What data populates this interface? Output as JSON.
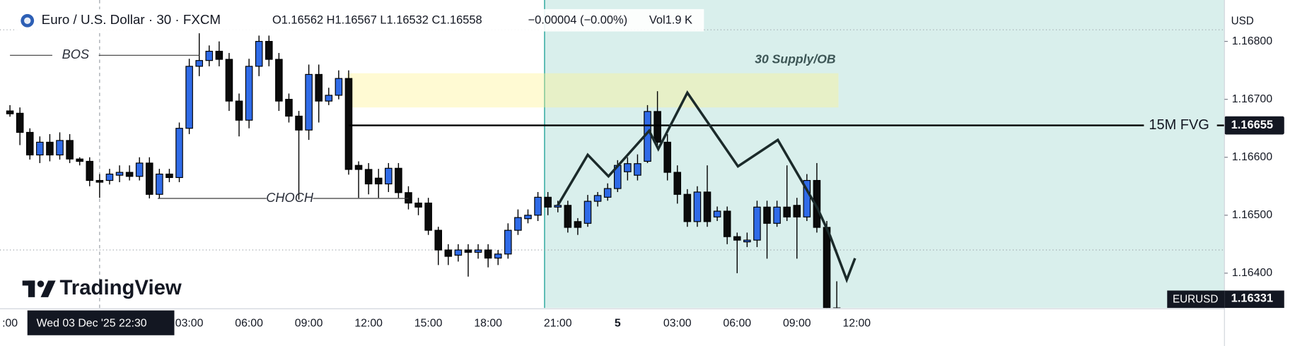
{
  "chart_data": {
    "type": "candlestick",
    "title": "Euro / U.S. Dollar · 30 · FXCM",
    "ohlc_text": "O1.16562 H1.16567 L1.16532 C1.16558",
    "change_text": "−0.00004 (−0.00%)",
    "volume_text": "Vol1.9 K",
    "currency": "USD",
    "symbol": "EURUSD",
    "crosshair_label": "Wed 03 Dec '25   22:30",
    "brand": "TradingView",
    "up_color": "#2f6be8",
    "down_color": "#0b0b0b",
    "grid": false,
    "categories": [
      ":00",
      null,
      null,
      null,
      null,
      null,
      null,
      null,
      null,
      null,
      null,
      null,
      null,
      null,
      null,
      null,
      null,
      null,
      "03:00",
      null,
      null,
      null,
      null,
      null,
      "06:00",
      null,
      null,
      null,
      null,
      null,
      "09:00",
      null,
      null,
      null,
      null,
      null,
      "12:00",
      null,
      null,
      null,
      null,
      null,
      "15:00",
      null,
      null,
      null,
      null,
      null,
      "18:00",
      null,
      null,
      null,
      null,
      null,
      null,
      "21:00",
      null,
      null,
      null,
      null,
      null,
      "5",
      null,
      null,
      null,
      null,
      null,
      "03:00",
      null,
      null,
      null,
      null,
      null,
      "06:00",
      null,
      null,
      null,
      null,
      null,
      "09:00",
      null,
      null,
      null,
      null,
      null,
      "12:00"
    ],
    "open": [
      1.1668,
      1.16676,
      1.16643,
      1.16604,
      1.16626,
      1.16604,
      1.16629,
      1.16597,
      1.16593,
      1.1656,
      1.1656,
      1.16569,
      1.16574,
      1.16567,
      1.1659,
      1.16536,
      1.16571,
      1.16565,
      1.1665,
      1.16757,
      1.16767,
      1.16783,
      1.16769,
      1.16697,
      1.16664,
      1.16757,
      1.168,
      1.16769,
      1.167,
      1.16671,
      1.16647,
      1.16743,
      1.16697,
      1.16707,
      1.16736,
      1.16586,
      1.16579,
      1.16564,
      1.16554,
      1.16581,
      1.16539,
      1.16521,
      1.16521,
      1.16474,
      1.1644,
      1.16431,
      1.1644,
      1.16436,
      1.1644,
      1.16426,
      1.16433,
      1.16474,
      1.16494,
      1.165,
      1.16531,
      1.16514,
      1.16517,
      1.16489,
      1.16486,
      1.16524,
      1.16531,
      1.16546,
      1.16575,
      1.16569,
      1.16593,
      1.16679,
      1.16626,
      1.16574,
      1.16536,
      1.16489,
      1.1654,
      1.16497,
      1.16507,
      1.16463,
      1.16454,
      1.16457,
      1.16514,
      1.16486,
      1.16514,
      1.16517,
      1.16497,
      1.1656,
      1.16479,
      1.1634,
      null,
      null
    ],
    "high": [
      1.1669,
      1.16686,
      1.1665,
      1.16636,
      1.1664,
      1.16643,
      1.1664,
      1.166,
      1.166,
      1.16571,
      1.1658,
      1.16586,
      1.16586,
      1.166,
      1.166,
      1.1658,
      1.1658,
      1.1666,
      1.1677,
      1.16814,
      1.16793,
      1.168,
      1.1678,
      1.1671,
      1.1677,
      1.1681,
      1.1681,
      1.1678,
      1.1671,
      1.1668,
      1.1676,
      1.1676,
      1.1672,
      1.1675,
      1.1675,
      1.16593,
      1.1659,
      1.1658,
      1.1659,
      1.1659,
      1.1655,
      1.1653,
      1.1653,
      1.1648,
      1.1645,
      1.1645,
      1.1645,
      1.1645,
      1.1645,
      1.1644,
      1.16486,
      1.1651,
      1.1651,
      1.1654,
      1.1654,
      1.16525,
      1.16525,
      1.16495,
      1.16535,
      1.1654,
      1.16555,
      1.16595,
      1.166,
      1.16605,
      1.1669,
      1.16714,
      1.1664,
      1.16586,
      1.16545,
      1.1655,
      1.16586,
      1.16515,
      1.16515,
      1.1647,
      1.1647,
      1.16525,
      1.16525,
      1.16525,
      1.16586,
      1.1653,
      1.16571,
      1.1659,
      1.1649,
      1.16386,
      null,
      null
    ],
    "low": [
      1.1667,
      1.16621,
      1.16596,
      1.1659,
      1.16593,
      1.16596,
      1.1659,
      1.16586,
      1.1655,
      1.1653,
      1.16553,
      1.16557,
      1.1656,
      1.1656,
      1.16529,
      1.16529,
      1.16557,
      1.16557,
      1.1664,
      1.1674,
      1.16757,
      1.16757,
      1.1668,
      1.16636,
      1.1665,
      1.1674,
      1.16757,
      1.1668,
      1.1666,
      1.16527,
      1.1663,
      1.1666,
      1.1669,
      1.167,
      1.1657,
      1.1653,
      1.16536,
      1.1653,
      1.1654,
      1.1653,
      1.1651,
      1.165,
      1.16466,
      1.16414,
      1.16414,
      1.1642,
      1.16394,
      1.16425,
      1.1641,
      1.16414,
      1.16425,
      1.16466,
      1.16486,
      1.1649,
      1.165,
      1.16505,
      1.1647,
      1.16466,
      1.1648,
      1.16515,
      1.16525,
      1.1654,
      1.1656,
      1.1656,
      1.1659,
      1.1662,
      1.1656,
      1.1652,
      1.1648,
      1.1648,
      1.1648,
      1.1649,
      1.1645,
      1.164,
      1.16445,
      1.16445,
      1.16425,
      1.1648,
      1.1649,
      1.16425,
      1.1649,
      1.1647,
      1.1632,
      1.1632,
      null,
      null
    ],
    "close": [
      1.16675,
      1.16643,
      1.16604,
      1.16626,
      1.16604,
      1.16629,
      1.16597,
      1.16593,
      1.1656,
      1.16557,
      1.16571,
      1.16574,
      1.16567,
      1.1659,
      1.16536,
      1.16571,
      1.16565,
      1.1665,
      1.16757,
      1.16767,
      1.16783,
      1.16769,
      1.16697,
      1.16664,
      1.16757,
      1.168,
      1.16769,
      1.16697,
      1.16671,
      1.16647,
      1.16743,
      1.16697,
      1.16707,
      1.16736,
      1.16579,
      1.16579,
      1.16554,
      1.16554,
      1.16581,
      1.16539,
      1.16521,
      1.16514,
      1.16474,
      1.1644,
      1.16429,
      1.1644,
      1.16436,
      1.1644,
      1.16426,
      1.16433,
      1.16474,
      1.16496,
      1.165,
      1.16531,
      1.16514,
      1.16517,
      1.16479,
      1.16479,
      1.16524,
      1.16534,
      1.16546,
      1.16586,
      1.16589,
      1.16589,
      1.16679,
      1.16626,
      1.16574,
      1.16536,
      1.16489,
      1.1654,
      1.16489,
      1.16507,
      1.16463,
      1.16457,
      1.16457,
      1.16514,
      1.16486,
      1.16514,
      1.16497,
      1.16497,
      1.1656,
      1.16479,
      1.1634,
      1.16331,
      null,
      null
    ],
    "ylim": [
      1.1634,
      1.1686
    ],
    "yticks": [
      {
        "value": 1.164,
        "label": "1.16400"
      },
      {
        "value": 1.165,
        "label": "1.16500"
      },
      {
        "value": 1.166,
        "label": "1.16600"
      },
      {
        "value": 1.167,
        "label": "1.16700"
      },
      {
        "value": 1.168,
        "label": "1.16800"
      }
    ],
    "levels": [
      {
        "label": "BOS",
        "value": 1.16776
      },
      {
        "label": "CHOCH",
        "value": 1.16529
      },
      {
        "label": "15M FVG",
        "value": 1.16655
      }
    ],
    "zone": {
      "label": "30 Supply/OB",
      "low": 1.16686,
      "high": 1.16745
    }
  }
}
